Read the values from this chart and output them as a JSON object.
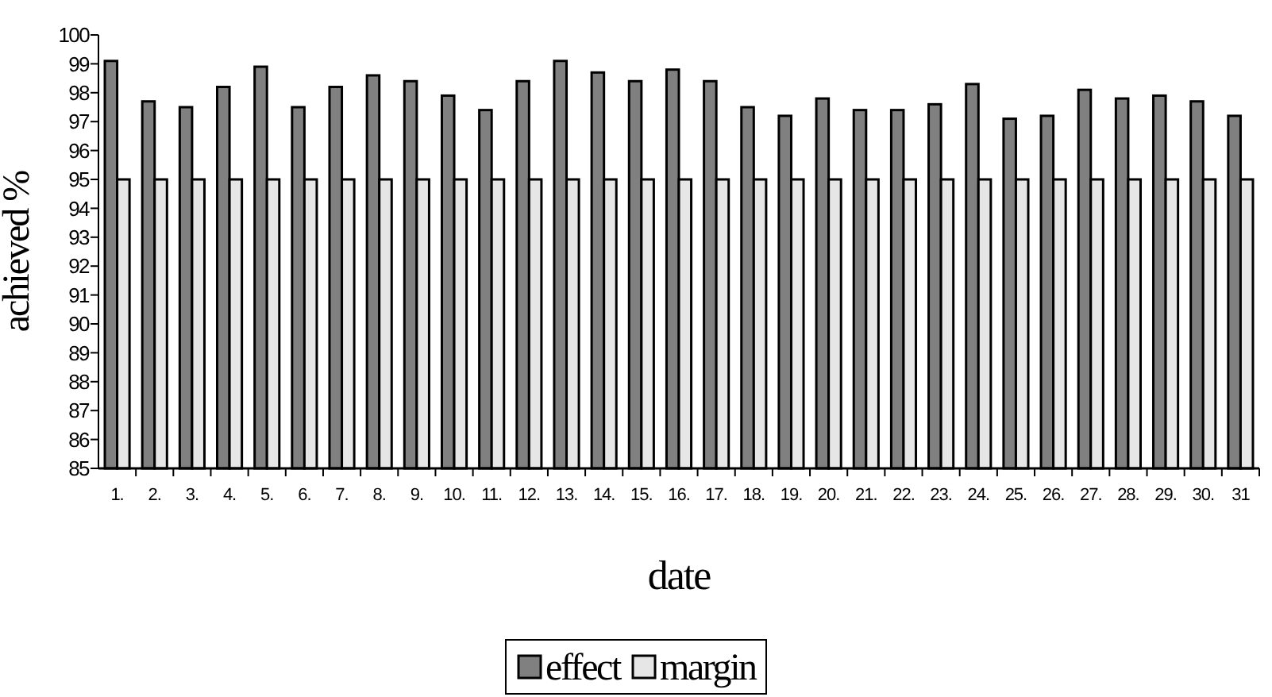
{
  "chart_data": {
    "type": "bar",
    "xlabel": "date",
    "ylabel": "achieved %",
    "categories": [
      "1.",
      "2.",
      "3.",
      "4.",
      "5.",
      "6.",
      "7.",
      "8.",
      "9.",
      "10.",
      "11.",
      "12.",
      "13.",
      "14.",
      "15.",
      "16.",
      "17.",
      "18.",
      "19.",
      "20.",
      "21.",
      "22.",
      "23.",
      "24.",
      "25.",
      "26.",
      "27.",
      "28.",
      "29.",
      "30.",
      "31"
    ],
    "series": [
      {
        "name": "effect",
        "color": "#808080",
        "values": [
          99.1,
          97.7,
          97.5,
          98.2,
          98.9,
          97.5,
          98.2,
          98.6,
          98.4,
          97.9,
          97.4,
          98.4,
          99.1,
          98.7,
          98.4,
          98.8,
          98.4,
          97.5,
          97.2,
          97.8,
          97.4,
          97.4,
          97.6,
          98.3,
          97.1,
          97.2,
          98.1,
          97.8,
          97.9,
          97.7,
          97.2
        ]
      },
      {
        "name": "margin",
        "color": "#e6e6e6",
        "values": [
          95,
          95,
          95,
          95,
          95,
          95,
          95,
          95,
          95,
          95,
          95,
          95,
          95,
          95,
          95,
          95,
          95,
          95,
          95,
          95,
          95,
          95,
          95,
          95,
          95,
          95,
          95,
          95,
          95,
          95,
          95
        ]
      }
    ],
    "ylim": [
      85,
      100
    ],
    "yticks": [
      85,
      86,
      87,
      88,
      89,
      90,
      91,
      92,
      93,
      94,
      95,
      96,
      97,
      98,
      99,
      100
    ],
    "grid": false,
    "legend": "bottom"
  }
}
